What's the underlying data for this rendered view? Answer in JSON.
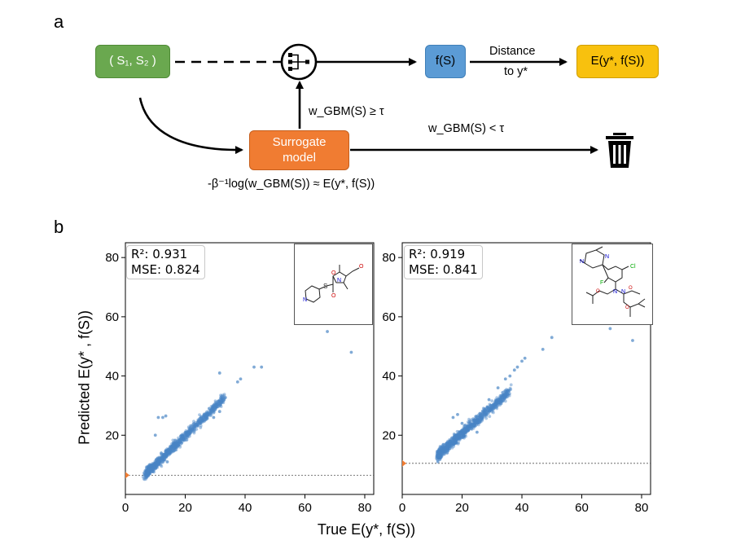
{
  "panel_a": {
    "label": "a",
    "node_s": "( S₁, S₂ )",
    "node_f": "f(S)",
    "node_e": "E(y*, f(S))",
    "node_surrogate_line1": "Surrogate",
    "node_surrogate_line2": "model",
    "edge_distance_line1": "Distance",
    "edge_distance_line2": "to y*",
    "edge_accept": "w_GBM(S) ≥ τ",
    "edge_reject": "w_GBM(S) < τ",
    "surrogate_formula": "-β⁻¹log(w_GBM(S)) ≈ E(y*, f(S))",
    "colors": {
      "green": "#6aa84f",
      "blue": "#5b9bd5",
      "orange": "#f07c32",
      "yellow": "#f8c10e"
    }
  },
  "panel_b": {
    "label": "b",
    "ylabel": "Predicted E(y* , f(S))",
    "xlabel": "True E(y*, f(S))"
  },
  "chart_data": [
    {
      "type": "scatter",
      "title": "",
      "xlabel": "True E(y*, f(S))",
      "ylabel": "Predicted E(y*, f(S))",
      "xlim": [
        0,
        83
      ],
      "ylim": [
        0,
        85
      ],
      "xticks": [
        0,
        20,
        40,
        60,
        80
      ],
      "yticks": [
        20,
        40,
        60,
        80
      ],
      "r2_label": "R²: 0.931",
      "mse_label": "MSE: 0.824",
      "threshold_y": 6.5,
      "threshold_marker_color": "#f07c32",
      "point_color": "#4a86c5",
      "cluster": {
        "x_range": [
          7,
          33
        ],
        "slope": 0.97,
        "intercept": 0.4,
        "spread": 1.1
      },
      "points": [
        [
          75.5,
          48
        ],
        [
          67.5,
          55
        ],
        [
          45.5,
          43
        ],
        [
          43,
          43
        ],
        [
          38.5,
          39
        ],
        [
          37.5,
          38
        ],
        [
          31.5,
          41
        ],
        [
          33,
          32
        ],
        [
          30,
          30
        ],
        [
          31.5,
          28
        ],
        [
          29.5,
          26
        ],
        [
          28,
          29
        ],
        [
          11,
          26
        ],
        [
          12.5,
          26
        ],
        [
          13.5,
          26.5
        ],
        [
          10,
          20
        ],
        [
          12,
          14
        ],
        [
          14,
          11
        ]
      ]
    },
    {
      "type": "scatter",
      "title": "",
      "xlabel": "True E(y*, f(S))",
      "ylabel": "Predicted E(y*, f(S))",
      "xlim": [
        0,
        83
      ],
      "ylim": [
        0,
        85
      ],
      "xticks": [
        0,
        20,
        40,
        60,
        80
      ],
      "yticks": [
        20,
        40,
        60,
        80
      ],
      "r2_label": "R²: 0.919",
      "mse_label": "MSE: 0.841",
      "threshold_y": 10.5,
      "threshold_marker_color": "#f07c32",
      "point_color": "#4a86c5",
      "cluster": {
        "x_range": [
          12,
          36
        ],
        "slope": 0.9,
        "intercept": 2.5,
        "spread": 1.2
      },
      "points": [
        [
          77,
          52
        ],
        [
          69.5,
          56
        ],
        [
          50,
          53
        ],
        [
          47,
          49
        ],
        [
          41,
          46
        ],
        [
          40,
          45
        ],
        [
          38.5,
          43
        ],
        [
          37.5,
          42
        ],
        [
          36,
          40
        ],
        [
          34.5,
          39
        ],
        [
          32,
          36
        ],
        [
          29,
          32
        ],
        [
          17,
          26
        ],
        [
          18.5,
          27
        ],
        [
          20,
          24
        ],
        [
          24,
          23
        ],
        [
          25,
          21
        ],
        [
          15,
          14
        ],
        [
          16,
          18
        ],
        [
          12,
          13
        ]
      ]
    }
  ]
}
